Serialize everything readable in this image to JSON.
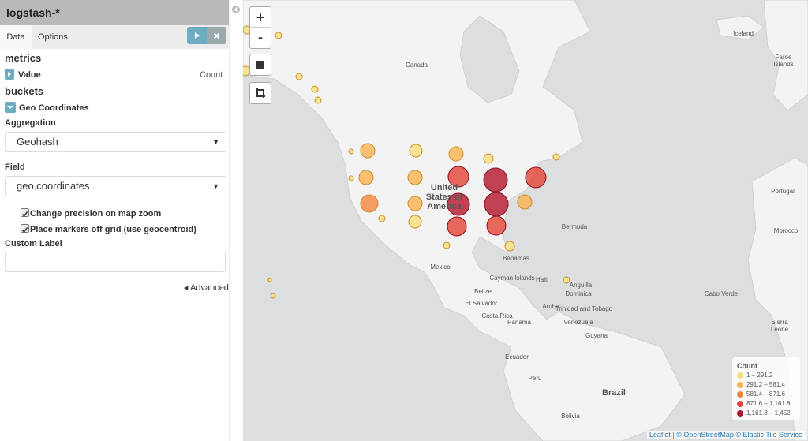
{
  "sidebar": {
    "index_pattern": "logstash-*",
    "tabs": [
      "Data",
      "Options"
    ],
    "metrics": {
      "heading": "metrics",
      "label": "Value",
      "value": "Count"
    },
    "buckets": {
      "heading": "buckets",
      "label": "Geo Coordinates"
    },
    "aggregation": {
      "label": "Aggregation",
      "value": "Geohash"
    },
    "field": {
      "label": "Field",
      "value": "geo.coordinates"
    },
    "checkboxes": [
      "Change precision on map zoom",
      "Place markers off grid (use geocentroid)"
    ],
    "custom_label": "Custom Label",
    "advanced": "Advanced"
  },
  "map": {
    "zoom_controls": [
      "+",
      "-"
    ],
    "labels": [
      "Canada",
      "Iceland",
      "Faroe Islands",
      "United States of America",
      "Mexico",
      "Bermuda",
      "Bahamas",
      "Cayman Islands",
      "Haiti",
      "Anguilla",
      "Dominica",
      "Belize",
      "El Salvador",
      "Costa Rica",
      "Panama",
      "Aruba",
      "Trinidad and Tobago",
      "Venezuela",
      "Guyana",
      "Ecuador",
      "Peru",
      "Brazil",
      "Bolivia",
      "Cabo Verde",
      "Portugal",
      "Morocco",
      "Sierra Leone"
    ],
    "legend": {
      "title": "Count",
      "ranges": [
        "1 – 291.2",
        "291.2 – 581.4",
        "581.4 – 871.6",
        "871.6 – 1,161.8",
        "1,161.8 – 1,452"
      ],
      "colors": [
        "#f9df7c",
        "#fbb24f",
        "#f5843f",
        "#e44437",
        "#b4142c"
      ]
    },
    "attribution": "Leaflet | © OpenStreetMap © Elastic Tile Service"
  }
}
